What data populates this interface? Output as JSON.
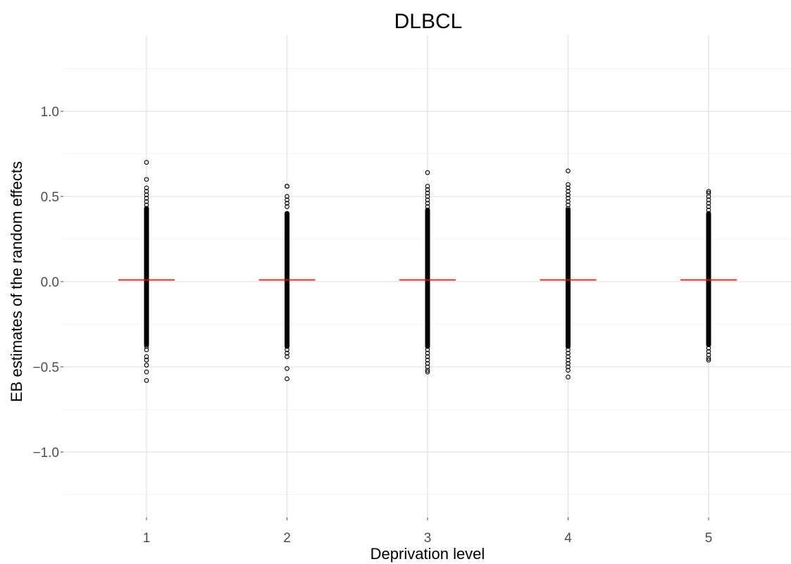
{
  "chart_data": {
    "type": "scatter",
    "title": "DLBCL",
    "xlabel": "Deprivation level",
    "ylabel": "EB estimates of the random effects",
    "categories": [
      "1",
      "2",
      "3",
      "4",
      "5"
    ],
    "ylim": [
      -1.25,
      1.25
    ],
    "y_ticks": [
      {
        "value": -1.0,
        "label": "−1.0"
      },
      {
        "value": -0.5,
        "label": "−0.5"
      },
      {
        "value": 0.0,
        "label": "0.0"
      },
      {
        "value": 0.5,
        "label": "0.5"
      },
      {
        "value": 1.0,
        "label": "1.0"
      }
    ],
    "grid": true,
    "groups": [
      {
        "category": "1",
        "dense_range": [
          -0.37,
          0.43
        ],
        "outliers": [
          0.7,
          0.6,
          0.55,
          0.53,
          0.51,
          0.49,
          0.47,
          0.45,
          -0.38,
          -0.4,
          -0.44,
          -0.46,
          -0.49,
          -0.53,
          -0.58
        ],
        "mean": 0.01
      },
      {
        "category": "2",
        "dense_range": [
          -0.38,
          0.4
        ],
        "outliers": [
          0.56,
          0.56,
          0.5,
          0.48,
          0.46,
          0.44,
          -0.4,
          -0.42,
          -0.44,
          -0.51,
          -0.57
        ],
        "mean": 0.01
      },
      {
        "category": "3",
        "dense_range": [
          -0.38,
          0.42
        ],
        "outliers": [
          0.64,
          0.56,
          0.54,
          0.52,
          0.5,
          0.48,
          0.46,
          0.44,
          -0.4,
          -0.42,
          -0.44,
          -0.46,
          -0.48,
          -0.5,
          -0.52,
          -0.53
        ],
        "mean": 0.01
      },
      {
        "category": "4",
        "dense_range": [
          -0.38,
          0.42
        ],
        "outliers": [
          0.65,
          0.57,
          0.55,
          0.53,
          0.51,
          0.49,
          0.47,
          0.45,
          0.43,
          -0.4,
          -0.42,
          -0.44,
          -0.46,
          -0.48,
          -0.5,
          -0.52,
          -0.56
        ],
        "mean": 0.01
      },
      {
        "category": "5",
        "dense_range": [
          -0.37,
          0.4
        ],
        "outliers": [
          0.53,
          0.52,
          0.5,
          0.48,
          0.46,
          0.44,
          0.42,
          -0.39,
          -0.41,
          -0.43,
          -0.45,
          -0.46
        ],
        "mean": 0.01
      }
    ],
    "mean_line_color": "#ff0000",
    "point_color": "#000000"
  }
}
